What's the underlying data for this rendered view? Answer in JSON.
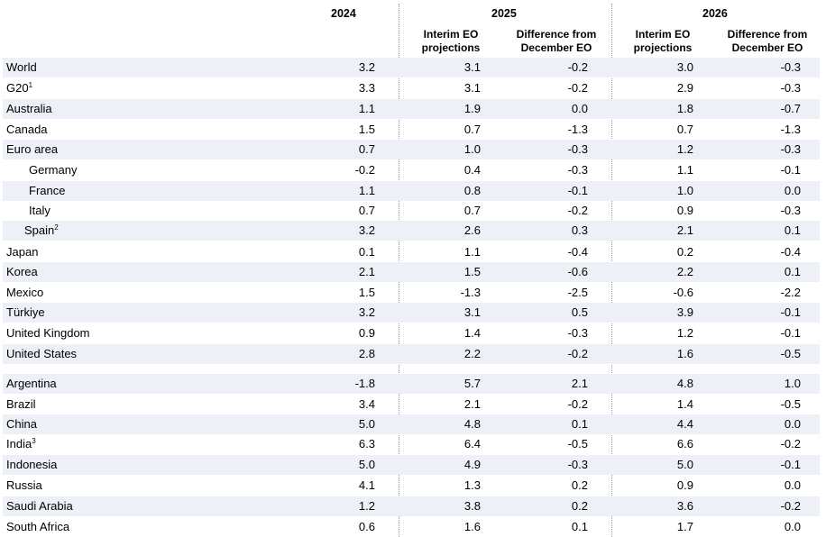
{
  "header": {
    "year_2024": "2024",
    "year_2025": "2025",
    "year_2026": "2026",
    "interim_2025": [
      "Interim EO",
      "projections"
    ],
    "diff_2025": [
      "Difference from",
      "December EO"
    ],
    "interim_2026": [
      "Interim EO",
      "projections"
    ],
    "diff_2026": [
      "Difference from",
      "December EO"
    ]
  },
  "rows": [
    {
      "name": "World",
      "sup": "",
      "v": [
        "3.2",
        "3.1",
        "-0.2",
        "3.0",
        "-0.3"
      ]
    },
    {
      "name": "G20",
      "sup": "1",
      "v": [
        "3.3",
        "3.1",
        "-0.2",
        "2.9",
        "-0.3"
      ]
    },
    {
      "name": "Australia",
      "sup": "",
      "v": [
        "1.1",
        "1.9",
        "0.0",
        "1.8",
        "-0.7"
      ]
    },
    {
      "name": "Canada",
      "sup": "",
      "v": [
        "1.5",
        "0.7",
        "-1.3",
        "0.7",
        "-1.3"
      ]
    },
    {
      "name": "Euro area",
      "sup": "",
      "v": [
        "0.7",
        "1.0",
        "-0.3",
        "1.2",
        "-0.3"
      ]
    },
    {
      "name": "Germany",
      "sup": "",
      "v": [
        "-0.2",
        "0.4",
        "-0.3",
        "1.1",
        "-0.1"
      ]
    },
    {
      "name": "France",
      "sup": "",
      "v": [
        "1.1",
        "0.8",
        "-0.1",
        "1.0",
        "0.0"
      ]
    },
    {
      "name": "Italy",
      "sup": "",
      "v": [
        "0.7",
        "0.7",
        "-0.2",
        "0.9",
        "-0.3"
      ]
    },
    {
      "name": "Spain",
      "sup": "2",
      "v": [
        "3.2",
        "2.6",
        "0.3",
        "2.1",
        "0.1"
      ]
    },
    {
      "name": "Japan",
      "sup": "",
      "v": [
        "0.1",
        "1.1",
        "-0.4",
        "0.2",
        "-0.4"
      ]
    },
    {
      "name": "Korea",
      "sup": "",
      "v": [
        "2.1",
        "1.5",
        "-0.6",
        "2.2",
        "0.1"
      ]
    },
    {
      "name": "Mexico",
      "sup": "",
      "v": [
        "1.5",
        "-1.3",
        "-2.5",
        "-0.6",
        "-2.2"
      ]
    },
    {
      "name": "Türkiye",
      "sup": "",
      "v": [
        "3.2",
        "3.1",
        "0.5",
        "3.9",
        "-0.1"
      ]
    },
    {
      "name": "United Kingdom",
      "sup": "",
      "v": [
        "0.9",
        "1.4",
        "-0.3",
        "1.2",
        "-0.1"
      ]
    },
    {
      "name": "United States",
      "sup": "",
      "v": [
        "2.8",
        "2.2",
        "-0.2",
        "1.6",
        "-0.5"
      ]
    },
    {
      "name": "Argentina",
      "sup": "",
      "v": [
        "-1.8",
        "5.7",
        "2.1",
        "4.8",
        "1.0"
      ]
    },
    {
      "name": "Brazil",
      "sup": "",
      "v": [
        "3.4",
        "2.1",
        "-0.2",
        "1.4",
        "-0.5"
      ]
    },
    {
      "name": "China",
      "sup": "",
      "v": [
        "5.0",
        "4.8",
        "0.1",
        "4.4",
        "0.0"
      ]
    },
    {
      "name": "India",
      "sup": "3",
      "v": [
        "6.3",
        "6.4",
        "-0.5",
        "6.6",
        "-0.2"
      ]
    },
    {
      "name": "Indonesia",
      "sup": "",
      "v": [
        "5.0",
        "4.9",
        "-0.3",
        "5.0",
        "-0.1"
      ]
    },
    {
      "name": "Russia",
      "sup": "",
      "v": [
        "4.1",
        "1.3",
        "0.2",
        "0.9",
        "0.0"
      ]
    },
    {
      "name": "Saudi Arabia",
      "sup": "",
      "v": [
        "1.2",
        "3.8",
        "0.2",
        "3.6",
        "-0.2"
      ]
    },
    {
      "name": "South Africa",
      "sup": "",
      "v": [
        "0.6",
        "1.6",
        "0.1",
        "1.7",
        "0.0"
      ]
    }
  ]
}
